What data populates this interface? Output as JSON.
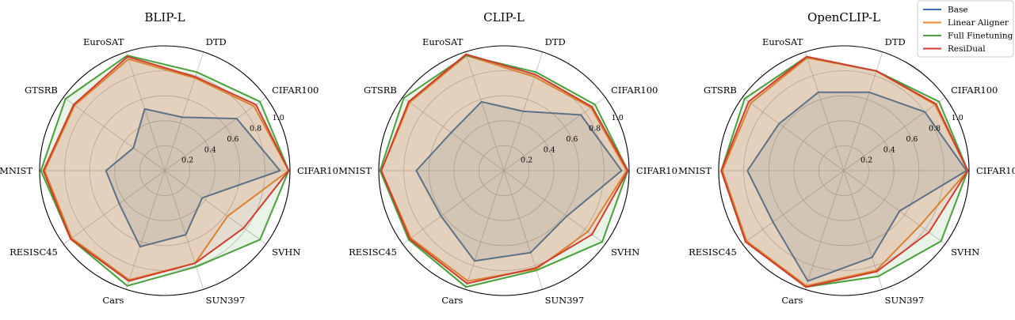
{
  "chart_data": {
    "type": "radar",
    "axes": [
      "CIFAR10",
      "CIFAR100",
      "DTD",
      "EuroSAT",
      "GTSRB",
      "MNIST",
      "RESISC45",
      "Cars",
      "SUN397",
      "SVHN"
    ],
    "rlim": [
      0,
      1.0
    ],
    "rticks": [
      "0.2",
      "0.4",
      "0.6",
      "0.8",
      "1.0"
    ],
    "grid": true,
    "legend": {
      "placement": "top-right",
      "entries": [
        "Base",
        "Linear Aligner",
        "Full Finetuning",
        "ResiDual"
      ]
    },
    "colors": {
      "Base": "#3a72b0",
      "Linear Aligner": "#f18a2f",
      "Full Finetuning": "#4aa03c",
      "ResiDual": "#d03d2e"
    },
    "panels": [
      {
        "title": "BLIP-L",
        "series": [
          {
            "name": "Base",
            "values": [
              0.92,
              0.71,
              0.45,
              0.52,
              0.31,
              0.47,
              0.45,
              0.64,
              0.54,
              0.37
            ]
          },
          {
            "name": "Linear Aligner",
            "values": [
              0.99,
              0.88,
              0.78,
              0.94,
              0.89,
              0.96,
              0.92,
              0.92,
              0.78,
              0.62
            ]
          },
          {
            "name": "Full Finetuning",
            "values": [
              0.99,
              0.94,
              0.83,
              0.97,
              0.98,
              0.99,
              0.93,
              0.97,
              0.81,
              0.94
            ]
          },
          {
            "name": "ResiDual",
            "values": [
              0.99,
              0.9,
              0.79,
              0.96,
              0.9,
              0.97,
              0.93,
              0.93,
              0.78,
              0.78
            ]
          }
        ]
      },
      {
        "title": "CLIP-L",
        "series": [
          {
            "name": "Base",
            "values": [
              0.94,
              0.76,
              0.5,
              0.58,
              0.52,
              0.7,
              0.62,
              0.76,
              0.69,
              0.62
            ]
          },
          {
            "name": "Linear Aligner",
            "values": [
              0.98,
              0.86,
              0.79,
              0.97,
              0.93,
              0.98,
              0.92,
              0.93,
              0.83,
              0.83
            ]
          },
          {
            "name": "Full Finetuning",
            "values": [
              0.99,
              0.9,
              0.83,
              0.97,
              0.99,
              0.99,
              0.94,
              0.98,
              0.84,
              0.97
            ]
          },
          {
            "name": "ResiDual",
            "values": [
              0.99,
              0.87,
              0.81,
              0.98,
              0.94,
              0.98,
              0.93,
              0.95,
              0.82,
              0.87
            ]
          }
        ]
      },
      {
        "title": "OpenCLIP-L",
        "series": [
          {
            "name": "Base",
            "values": [
              0.98,
              0.8,
              0.66,
              0.66,
              0.64,
              0.77,
              0.7,
              0.93,
              0.73,
              0.55
            ]
          },
          {
            "name": "Linear Aligner",
            "values": [
              0.99,
              0.9,
              0.84,
              0.95,
              0.92,
              0.97,
              0.96,
              0.97,
              0.84,
              0.75
            ]
          },
          {
            "name": "Full Finetuning",
            "values": [
              0.99,
              0.94,
              0.84,
              0.96,
              0.98,
              0.98,
              0.97,
              0.98,
              0.89,
              0.96
            ]
          },
          {
            "name": "ResiDual",
            "values": [
              0.99,
              0.91,
              0.84,
              0.96,
              0.94,
              0.98,
              0.97,
              0.98,
              0.85,
              0.84
            ]
          }
        ]
      }
    ]
  }
}
